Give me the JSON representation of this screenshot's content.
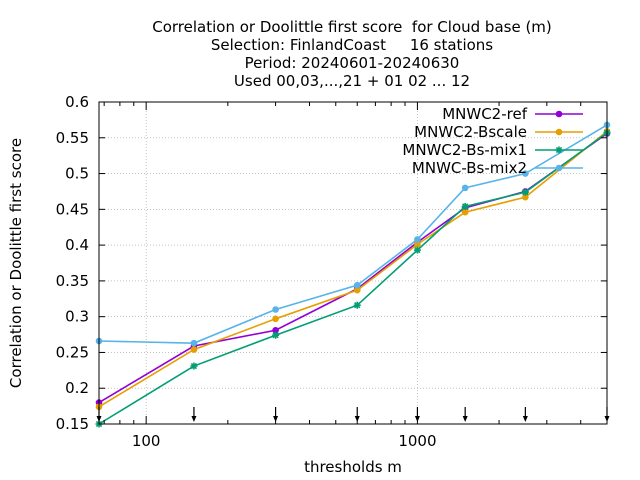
{
  "chart_data": {
    "type": "line",
    "title_lines": [
      "Correlation or Doolittle first score  for Cloud base (m)",
      "Selection: FinlandCoast     16 stations",
      "Period: 20240601-20240630",
      "Used 00,03,...,21 + 01 02 ... 12"
    ],
    "xlabel": "thresholds m",
    "ylabel": "Correlation or Doolittle first score",
    "x_scale": "log",
    "xlim": [
      67,
      5000
    ],
    "ylim": [
      0.15,
      0.6
    ],
    "x_ticks": [
      100,
      1000
    ],
    "x_tick_labels": [
      "100",
      "1000"
    ],
    "y_ticks": [
      0.15,
      0.2,
      0.25,
      0.3,
      0.35,
      0.4,
      0.45,
      0.5,
      0.55,
      0.6
    ],
    "y_tick_labels": [
      "0.15",
      "0.2",
      "0.25",
      "0.3",
      "0.35",
      "0.4",
      "0.45",
      "0.5",
      "0.55",
      "0.6"
    ],
    "grid": true,
    "legend_position": "top-right",
    "threshold_markers": [
      67,
      150,
      300,
      600,
      1000,
      1500,
      2500,
      5000
    ],
    "x": [
      67,
      150,
      300,
      600,
      1000,
      1500,
      2500,
      5000
    ],
    "series": [
      {
        "name": "MNWC2-ref",
        "color": "#9400d3",
        "marker": "circle",
        "values": [
          0.18,
          0.259,
          0.281,
          0.339,
          0.404,
          0.452,
          0.475,
          0.556
        ]
      },
      {
        "name": "MNWC2-Bscale",
        "color": "#e69f00",
        "marker": "circle",
        "values": [
          0.174,
          0.254,
          0.297,
          0.337,
          0.401,
          0.446,
          0.467,
          0.559
        ]
      },
      {
        "name": "MNWC2-Bs-mix1",
        "color": "#009e73",
        "marker": "star",
        "values": [
          0.15,
          0.231,
          0.274,
          0.316,
          0.393,
          0.454,
          0.474,
          0.557
        ]
      },
      {
        "name": "MNWC-Bs-mix2",
        "color": "#56b4e9",
        "marker": "circle",
        "values": [
          0.266,
          0.263,
          0.31,
          0.344,
          0.408,
          0.48,
          0.5,
          0.568
        ]
      }
    ]
  }
}
